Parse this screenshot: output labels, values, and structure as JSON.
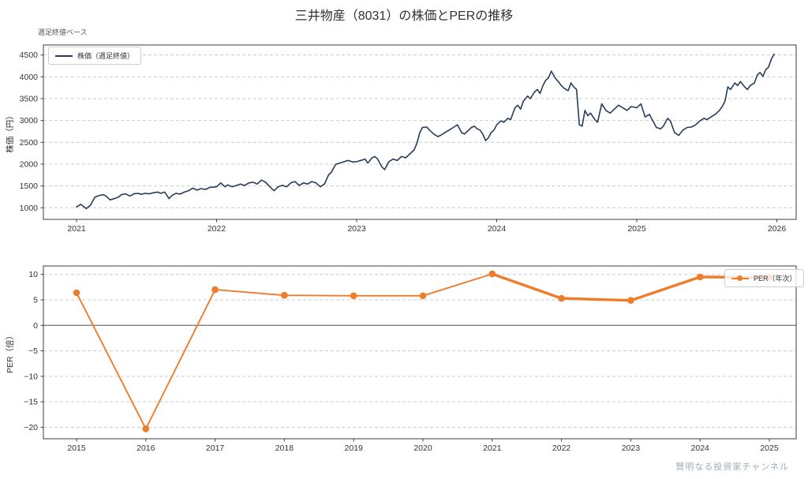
{
  "figure": {
    "title": "三井物産（8031）の株価とPERの推移",
    "subtitle": "週足終値ベース",
    "watermark": "賢明なる投資家チャンネル"
  },
  "colors": {
    "stock_line": "#263c5c",
    "per_line": "#ee7c2b",
    "grid": "#cccccc",
    "zero_line": "#7f7f7f",
    "spine": "#3c3c3c",
    "text": "#333333",
    "subtitle_text": "#555555",
    "watermark_text": "#9dadb8",
    "background": "#ffffff"
  },
  "chart_data": [
    {
      "type": "line",
      "name": "stock-price-weekly",
      "legend": "株価（週足終値）",
      "ylabel": "株価（円）",
      "xlabel": "",
      "x_ticks": [
        2021,
        2022,
        2023,
        2024,
        2025,
        2026
      ],
      "y_ticks": [
        1000,
        1500,
        2000,
        2500,
        3000,
        3500,
        4000,
        4500
      ],
      "xlim": [
        2020.76,
        2026.14
      ],
      "ylim": [
        730,
        4730
      ],
      "grid": "horizontal-dashed",
      "legend_position": "upper-left",
      "points": [
        [
          2021.0,
          1020
        ],
        [
          2021.03,
          1080
        ],
        [
          2021.05,
          1030
        ],
        [
          2021.07,
          980
        ],
        [
          2021.1,
          1060
        ],
        [
          2021.13,
          1240
        ],
        [
          2021.16,
          1280
        ],
        [
          2021.19,
          1300
        ],
        [
          2021.21,
          1270
        ],
        [
          2021.24,
          1180
        ],
        [
          2021.27,
          1210
        ],
        [
          2021.3,
          1245
        ],
        [
          2021.32,
          1300
        ],
        [
          2021.35,
          1320
        ],
        [
          2021.38,
          1270
        ],
        [
          2021.41,
          1320
        ],
        [
          2021.44,
          1330
        ],
        [
          2021.46,
          1310
        ],
        [
          2021.49,
          1330
        ],
        [
          2021.52,
          1320
        ],
        [
          2021.55,
          1345
        ],
        [
          2021.58,
          1360
        ],
        [
          2021.6,
          1330
        ],
        [
          2021.63,
          1360
        ],
        [
          2021.66,
          1210
        ],
        [
          2021.68,
          1280
        ],
        [
          2021.71,
          1330
        ],
        [
          2021.74,
          1315
        ],
        [
          2021.77,
          1360
        ],
        [
          2021.8,
          1390
        ],
        [
          2021.83,
          1450
        ],
        [
          2021.86,
          1405
        ],
        [
          2021.89,
          1440
        ],
        [
          2021.92,
          1420
        ],
        [
          2021.95,
          1465
        ],
        [
          2022.0,
          1480
        ],
        [
          2022.03,
          1570
        ],
        [
          2022.06,
          1480
        ],
        [
          2022.08,
          1525
        ],
        [
          2022.11,
          1480
        ],
        [
          2022.14,
          1510
        ],
        [
          2022.17,
          1545
        ],
        [
          2022.2,
          1510
        ],
        [
          2022.23,
          1570
        ],
        [
          2022.26,
          1585
        ],
        [
          2022.29,
          1545
        ],
        [
          2022.32,
          1635
        ],
        [
          2022.35,
          1585
        ],
        [
          2022.38,
          1480
        ],
        [
          2022.41,
          1390
        ],
        [
          2022.44,
          1480
        ],
        [
          2022.47,
          1515
        ],
        [
          2022.5,
          1480
        ],
        [
          2022.53,
          1570
        ],
        [
          2022.56,
          1600
        ],
        [
          2022.59,
          1510
        ],
        [
          2022.62,
          1570
        ],
        [
          2022.65,
          1545
        ],
        [
          2022.68,
          1600
        ],
        [
          2022.71,
          1570
        ],
        [
          2022.74,
          1480
        ],
        [
          2022.77,
          1545
        ],
        [
          2022.8,
          1755
        ],
        [
          2022.82,
          1815
        ],
        [
          2022.85,
          1995
        ],
        [
          2022.88,
          2025
        ],
        [
          2022.91,
          2055
        ],
        [
          2022.94,
          2085
        ],
        [
          2022.97,
          2050
        ],
        [
          2023.0,
          2055
        ],
        [
          2023.03,
          2085
        ],
        [
          2023.06,
          2115
        ],
        [
          2023.08,
          2025
        ],
        [
          2023.11,
          2145
        ],
        [
          2023.13,
          2175
        ],
        [
          2023.15,
          2115
        ],
        [
          2023.18,
          1935
        ],
        [
          2023.2,
          1875
        ],
        [
          2023.23,
          2055
        ],
        [
          2023.26,
          2115
        ],
        [
          2023.29,
          2085
        ],
        [
          2023.32,
          2175
        ],
        [
          2023.35,
          2145
        ],
        [
          2023.38,
          2235
        ],
        [
          2023.41,
          2325
        ],
        [
          2023.43,
          2475
        ],
        [
          2023.45,
          2715
        ],
        [
          2023.47,
          2840
        ],
        [
          2023.5,
          2850
        ],
        [
          2023.52,
          2780
        ],
        [
          2023.55,
          2690
        ],
        [
          2023.58,
          2630
        ],
        [
          2023.6,
          2660
        ],
        [
          2023.63,
          2720
        ],
        [
          2023.66,
          2780
        ],
        [
          2023.69,
          2840
        ],
        [
          2023.72,
          2900
        ],
        [
          2023.75,
          2720
        ],
        [
          2023.77,
          2690
        ],
        [
          2023.8,
          2780
        ],
        [
          2023.82,
          2840
        ],
        [
          2023.84,
          2870
        ],
        [
          2023.86,
          2810
        ],
        [
          2023.88,
          2780
        ],
        [
          2023.9,
          2690
        ],
        [
          2023.92,
          2540
        ],
        [
          2023.94,
          2600
        ],
        [
          2023.96,
          2720
        ],
        [
          2023.98,
          2780
        ],
        [
          2024.0,
          2900
        ],
        [
          2024.03,
          2990
        ],
        [
          2024.05,
          2960
        ],
        [
          2024.08,
          3050
        ],
        [
          2024.1,
          3020
        ],
        [
          2024.13,
          3290
        ],
        [
          2024.15,
          3350
        ],
        [
          2024.17,
          3260
        ],
        [
          2024.19,
          3440
        ],
        [
          2024.22,
          3560
        ],
        [
          2024.24,
          3500
        ],
        [
          2024.27,
          3650
        ],
        [
          2024.29,
          3710
        ],
        [
          2024.31,
          3620
        ],
        [
          2024.33,
          3800
        ],
        [
          2024.35,
          3920
        ],
        [
          2024.37,
          3980
        ],
        [
          2024.39,
          4130
        ],
        [
          2024.42,
          3960
        ],
        [
          2024.44,
          3890
        ],
        [
          2024.46,
          3800
        ],
        [
          2024.48,
          3740
        ],
        [
          2024.51,
          3680
        ],
        [
          2024.53,
          3860
        ],
        [
          2024.55,
          3770
        ],
        [
          2024.57,
          3710
        ],
        [
          2024.59,
          2900
        ],
        [
          2024.61,
          2870
        ],
        [
          2024.63,
          3230
        ],
        [
          2024.65,
          3110
        ],
        [
          2024.67,
          3170
        ],
        [
          2024.7,
          3020
        ],
        [
          2024.72,
          2960
        ],
        [
          2024.75,
          3380
        ],
        [
          2024.78,
          3230
        ],
        [
          2024.81,
          3170
        ],
        [
          2024.84,
          3260
        ],
        [
          2024.87,
          3350
        ],
        [
          2024.9,
          3290
        ],
        [
          2024.93,
          3230
        ],
        [
          2024.96,
          3320
        ],
        [
          2025.0,
          3290
        ],
        [
          2025.03,
          3380
        ],
        [
          2025.06,
          3080
        ],
        [
          2025.09,
          3140
        ],
        [
          2025.11,
          3020
        ],
        [
          2025.14,
          2840
        ],
        [
          2025.17,
          2810
        ],
        [
          2025.19,
          2870
        ],
        [
          2025.22,
          3050
        ],
        [
          2025.24,
          2990
        ],
        [
          2025.27,
          2720
        ],
        [
          2025.3,
          2660
        ],
        [
          2025.33,
          2780
        ],
        [
          2025.36,
          2840
        ],
        [
          2025.39,
          2850
        ],
        [
          2025.42,
          2900
        ],
        [
          2025.45,
          2990
        ],
        [
          2025.48,
          3050
        ],
        [
          2025.5,
          3020
        ],
        [
          2025.53,
          3080
        ],
        [
          2025.56,
          3140
        ],
        [
          2025.59,
          3230
        ],
        [
          2025.61,
          3320
        ],
        [
          2025.63,
          3440
        ],
        [
          2025.65,
          3770
        ],
        [
          2025.67,
          3710
        ],
        [
          2025.7,
          3860
        ],
        [
          2025.72,
          3800
        ],
        [
          2025.74,
          3890
        ],
        [
          2025.77,
          3770
        ],
        [
          2025.79,
          3710
        ],
        [
          2025.81,
          3800
        ],
        [
          2025.84,
          3860
        ],
        [
          2025.86,
          4040
        ],
        [
          2025.88,
          4100
        ],
        [
          2025.9,
          4010
        ],
        [
          2025.92,
          4160
        ],
        [
          2025.94,
          4220
        ],
        [
          2025.96,
          4400
        ],
        [
          2025.98,
          4520
        ]
      ]
    },
    {
      "type": "line",
      "name": "per-annual",
      "legend": "PER（年次）",
      "ylabel": "PER（倍）",
      "xlabel": "",
      "x_ticks": [
        2015,
        2016,
        2017,
        2018,
        2019,
        2020,
        2021,
        2022,
        2023,
        2024,
        2025
      ],
      "y_ticks": [
        10,
        5,
        0,
        -5,
        -10,
        -15,
        -20
      ],
      "xlim": [
        2014.52,
        2025.39
      ],
      "ylim": [
        -22.3,
        11.7
      ],
      "grid": "horizontal-dashed",
      "zero_line": true,
      "legend_position": "center-right",
      "marker": "circle",
      "style_note": "line drawn thicker from 2021 onward",
      "categories": [
        2015,
        2016,
        2017,
        2018,
        2019,
        2020,
        2021,
        2022,
        2023,
        2024,
        2025
      ],
      "values": [
        6.4,
        -20.3,
        7.0,
        5.9,
        5.8,
        5.8,
        10.1,
        5.3,
        4.9,
        9.5,
        9.4
      ]
    }
  ]
}
